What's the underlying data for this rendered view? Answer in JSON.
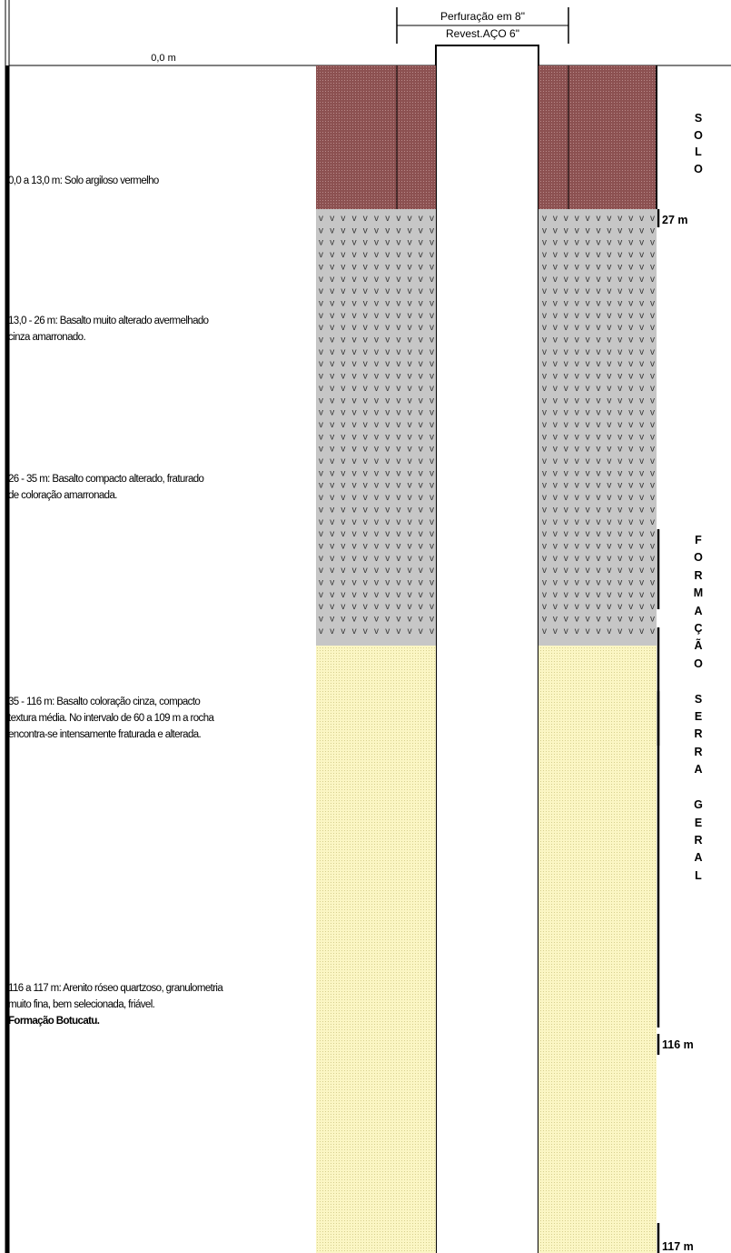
{
  "header": {
    "drilling_label": "Perfuração em 8\"",
    "casing_label": "Revest.AÇO 6\"",
    "start_depth": "0,0 m"
  },
  "lithology": [
    {
      "lines": [
        "0,0 a 13,0 m: Solo argiloso vermelho"
      ],
      "bold_lines": []
    },
    {
      "lines": [
        "13,0 - 26 m: Basalto muito alterado avermelhado",
        "cinza amarronado."
      ],
      "bold_lines": []
    },
    {
      "lines": [
        "26 - 35 m: Basalto compacto alterado, fraturado",
        "de coloração amarronada."
      ],
      "bold_lines": []
    },
    {
      "lines": [
        "35 - 116 m: Basalto coloração cinza, compacto",
        "textura média. No intervalo de 60 a 109 m a rocha",
        "encontra-se intensamente fraturada e alterada."
      ],
      "bold_lines": []
    },
    {
      "lines": [
        "116 a 117 m: Arenito róseo quartzoso, granulometria",
        "muito fina, bem selecionada, friável."
      ],
      "bold_lines": [
        "Formação Botucatu."
      ]
    }
  ],
  "formations": {
    "solo": [
      "S",
      "O",
      "L",
      "O"
    ],
    "serra_geral": [
      "F",
      "O",
      "R",
      "M",
      "A",
      "Ç",
      "Ã",
      "O",
      "",
      "S",
      "E",
      "R",
      "R",
      "A",
      "",
      "G",
      "E",
      "R",
      "A",
      "L"
    ]
  },
  "depth_markers": [
    "27 m",
    "116 m",
    "117 m"
  ],
  "colors": {
    "soil": "#8c5151",
    "basalt": "#c6c6c6",
    "sandstone": "#fbf6c4"
  },
  "basalt_symbol": "v"
}
